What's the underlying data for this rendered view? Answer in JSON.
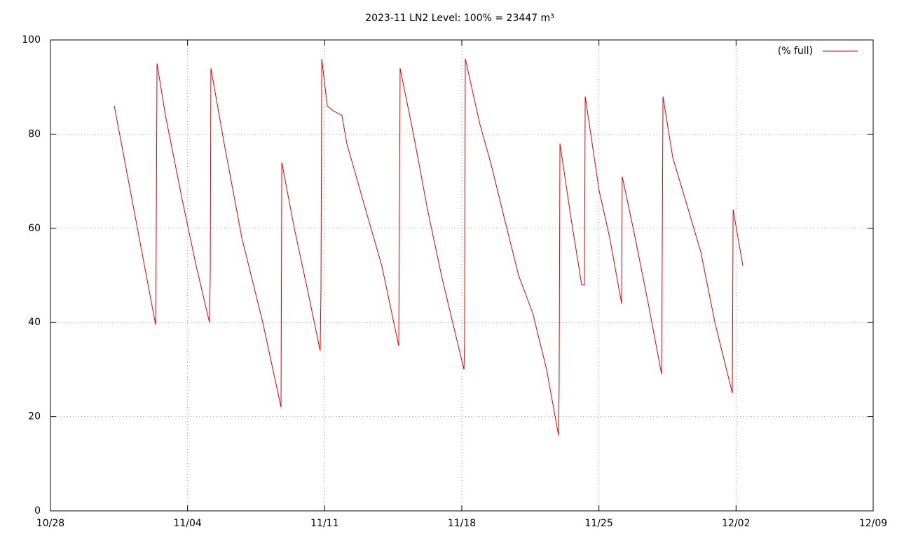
{
  "chart_data": {
    "type": "line",
    "title": "2023-11 LN2 Level: 100% = 23447 m³",
    "x": [
      3.26,
      5.37,
      5.4,
      5.44,
      5.87,
      6.73,
      7.44,
      8.12,
      8.16,
      8.19,
      8.87,
      9.77,
      10.84,
      11.77,
      11.81,
      12.45,
      13.17,
      13.77,
      13.81,
      13.85,
      14.13,
      14.42,
      14.88,
      15.13,
      16.02,
      16.92,
      17.78,
      17.82,
      17.85,
      18.53,
      19.25,
      19.96,
      21.11,
      21.14,
      21.18,
      21.93,
      22.47,
      23.18,
      23.9,
      24.62,
      25.33,
      25.94,
      25.97,
      26.01,
      26.58,
      27.12,
      27.26,
      27.3,
      28.01,
      28.55,
      29.16,
      29.19,
      29.8,
      30.52,
      31.2,
      31.27,
      31.77,
      32.49,
      33.2,
      33.92,
      34.81,
      34.85,
      35.35
    ],
    "series": [
      {
        "name": "(% full)",
        "color": "#e00000",
        "values": [
          86,
          39.5,
          58,
          95,
          84,
          66,
          52,
          40,
          51,
          94,
          78,
          58,
          40,
          22,
          74,
          60,
          46,
          34,
          47,
          96,
          86,
          85,
          84,
          78,
          65,
          52,
          35,
          65,
          94,
          80,
          64,
          50,
          30,
          36,
          96,
          82,
          74,
          62,
          50,
          42,
          30,
          16,
          27,
          78,
          62,
          48,
          48,
          88,
          68,
          58,
          44,
          71,
          59,
          44,
          29,
          88,
          75,
          65,
          55,
          40,
          25,
          64,
          52
        ]
      }
    ],
    "xlim": [
      0,
      42
    ],
    "xticks": [
      {
        "value": 0,
        "label": "10/28"
      },
      {
        "value": 7,
        "label": "11/04"
      },
      {
        "value": 14,
        "label": "11/11"
      },
      {
        "value": 21,
        "label": "11/18"
      },
      {
        "value": 28,
        "label": "11/25"
      },
      {
        "value": 35,
        "label": "12/02"
      },
      {
        "value": 42,
        "label": "12/09"
      }
    ],
    "ylim": [
      0,
      100
    ],
    "yticks": [
      0,
      20,
      40,
      60,
      80,
      100
    ],
    "grid": true,
    "legend": "top-right"
  }
}
